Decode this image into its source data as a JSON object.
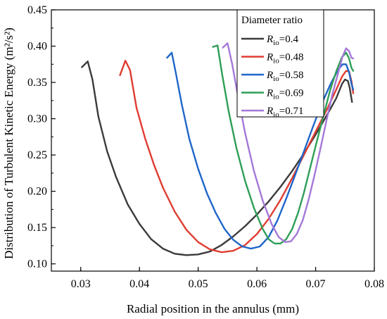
{
  "chart_data": {
    "type": "line",
    "xlabel": "Radial position in the annulus (mm)",
    "ylabel": "Distribution of Turbulent Kinetic Energy (m²/s²)",
    "xlim": [
      0.025,
      0.08
    ],
    "ylim": [
      0.09,
      0.45
    ],
    "x_ticks": [
      0.03,
      0.04,
      0.05,
      0.06,
      0.07,
      0.08
    ],
    "x_tick_labels": [
      "0.03",
      "0.04",
      "0.05",
      "0.06",
      "0.07",
      "0.08"
    ],
    "y_ticks": [
      0.1,
      0.15,
      0.2,
      0.25,
      0.3,
      0.35,
      0.4,
      0.45
    ],
    "y_tick_labels": [
      "0.10",
      "0.15",
      "0.20",
      "0.25",
      "0.30",
      "0.35",
      "0.40",
      "0.45"
    ],
    "grid": false,
    "legend": {
      "title": "Diameter ratio",
      "placement": "top-right",
      "symbol": "R",
      "subscript": "io"
    },
    "series": [
      {
        "name": "=0.4",
        "color": "#3b3b3b",
        "points": [
          [
            0.0302,
            0.371
          ],
          [
            0.0312,
            0.379
          ],
          [
            0.032,
            0.354
          ],
          [
            0.033,
            0.303
          ],
          [
            0.0345,
            0.255
          ],
          [
            0.036,
            0.22
          ],
          [
            0.038,
            0.182
          ],
          [
            0.04,
            0.155
          ],
          [
            0.042,
            0.134
          ],
          [
            0.044,
            0.121
          ],
          [
            0.046,
            0.114
          ],
          [
            0.048,
            0.112
          ],
          [
            0.05,
            0.113
          ],
          [
            0.052,
            0.117
          ],
          [
            0.054,
            0.126
          ],
          [
            0.056,
            0.138
          ],
          [
            0.058,
            0.152
          ],
          [
            0.06,
            0.168
          ],
          [
            0.062,
            0.186
          ],
          [
            0.064,
            0.206
          ],
          [
            0.066,
            0.228
          ],
          [
            0.068,
            0.252
          ],
          [
            0.07,
            0.278
          ],
          [
            0.072,
            0.306
          ],
          [
            0.0735,
            0.328
          ],
          [
            0.0745,
            0.348
          ],
          [
            0.075,
            0.354
          ],
          [
            0.0755,
            0.352
          ],
          [
            0.0758,
            0.343
          ],
          [
            0.0762,
            0.323
          ]
        ]
      },
      {
        "name": "=0.48",
        "color": "#e03c31",
        "points": [
          [
            0.0367,
            0.36
          ],
          [
            0.0376,
            0.38
          ],
          [
            0.0384,
            0.367
          ],
          [
            0.0395,
            0.315
          ],
          [
            0.041,
            0.272
          ],
          [
            0.0425,
            0.236
          ],
          [
            0.044,
            0.205
          ],
          [
            0.046,
            0.172
          ],
          [
            0.048,
            0.147
          ],
          [
            0.05,
            0.13
          ],
          [
            0.052,
            0.12
          ],
          [
            0.054,
            0.116
          ],
          [
            0.056,
            0.118
          ],
          [
            0.058,
            0.126
          ],
          [
            0.06,
            0.141
          ],
          [
            0.062,
            0.162
          ],
          [
            0.064,
            0.188
          ],
          [
            0.066,
            0.218
          ],
          [
            0.068,
            0.25
          ],
          [
            0.07,
            0.282
          ],
          [
            0.072,
            0.314
          ],
          [
            0.0735,
            0.34
          ],
          [
            0.0745,
            0.358
          ],
          [
            0.0752,
            0.366
          ],
          [
            0.0757,
            0.365
          ],
          [
            0.0761,
            0.352
          ],
          [
            0.0764,
            0.335
          ]
        ]
      },
      {
        "name": "=0.58",
        "color": "#1f66c9",
        "points": [
          [
            0.0447,
            0.384
          ],
          [
            0.0455,
            0.391
          ],
          [
            0.0462,
            0.363
          ],
          [
            0.0472,
            0.32
          ],
          [
            0.0485,
            0.272
          ],
          [
            0.05,
            0.231
          ],
          [
            0.0515,
            0.197
          ],
          [
            0.053,
            0.17
          ],
          [
            0.0545,
            0.148
          ],
          [
            0.056,
            0.133
          ],
          [
            0.0575,
            0.124
          ],
          [
            0.059,
            0.121
          ],
          [
            0.0605,
            0.124
          ],
          [
            0.062,
            0.137
          ],
          [
            0.0635,
            0.16
          ],
          [
            0.065,
            0.19
          ],
          [
            0.0665,
            0.222
          ],
          [
            0.068,
            0.255
          ],
          [
            0.0695,
            0.288
          ],
          [
            0.071,
            0.32
          ],
          [
            0.0725,
            0.347
          ],
          [
            0.0738,
            0.367
          ],
          [
            0.0746,
            0.375
          ],
          [
            0.0752,
            0.375
          ],
          [
            0.0757,
            0.364
          ],
          [
            0.0761,
            0.348
          ],
          [
            0.0764,
            0.34
          ]
        ]
      },
      {
        "name": "=0.69",
        "color": "#2e9e57",
        "points": [
          [
            0.0525,
            0.399
          ],
          [
            0.0533,
            0.401
          ],
          [
            0.0541,
            0.36
          ],
          [
            0.0552,
            0.31
          ],
          [
            0.0565,
            0.26
          ],
          [
            0.058,
            0.214
          ],
          [
            0.0595,
            0.177
          ],
          [
            0.061,
            0.148
          ],
          [
            0.062,
            0.134
          ],
          [
            0.063,
            0.128
          ],
          [
            0.064,
            0.128
          ],
          [
            0.065,
            0.134
          ],
          [
            0.066,
            0.148
          ],
          [
            0.067,
            0.17
          ],
          [
            0.068,
            0.198
          ],
          [
            0.069,
            0.23
          ],
          [
            0.07,
            0.262
          ],
          [
            0.0712,
            0.3
          ],
          [
            0.0725,
            0.34
          ],
          [
            0.0735,
            0.365
          ],
          [
            0.0745,
            0.385
          ],
          [
            0.0752,
            0.391
          ],
          [
            0.0757,
            0.383
          ],
          [
            0.0761,
            0.37
          ],
          [
            0.0764,
            0.366
          ]
        ]
      },
      {
        "name": "=0.71",
        "color": "#a478d8",
        "points": [
          [
            0.0542,
            0.398
          ],
          [
            0.055,
            0.404
          ],
          [
            0.0558,
            0.375
          ],
          [
            0.0568,
            0.33
          ],
          [
            0.058,
            0.28
          ],
          [
            0.0595,
            0.228
          ],
          [
            0.061,
            0.187
          ],
          [
            0.0625,
            0.155
          ],
          [
            0.0637,
            0.137
          ],
          [
            0.0648,
            0.13
          ],
          [
            0.0658,
            0.131
          ],
          [
            0.0668,
            0.141
          ],
          [
            0.0678,
            0.16
          ],
          [
            0.0688,
            0.188
          ],
          [
            0.0698,
            0.222
          ],
          [
            0.0708,
            0.258
          ],
          [
            0.0718,
            0.296
          ],
          [
            0.0728,
            0.332
          ],
          [
            0.0738,
            0.362
          ],
          [
            0.0746,
            0.386
          ],
          [
            0.0752,
            0.397
          ],
          [
            0.0757,
            0.393
          ],
          [
            0.0761,
            0.384
          ],
          [
            0.0764,
            0.383
          ]
        ]
      }
    ]
  }
}
